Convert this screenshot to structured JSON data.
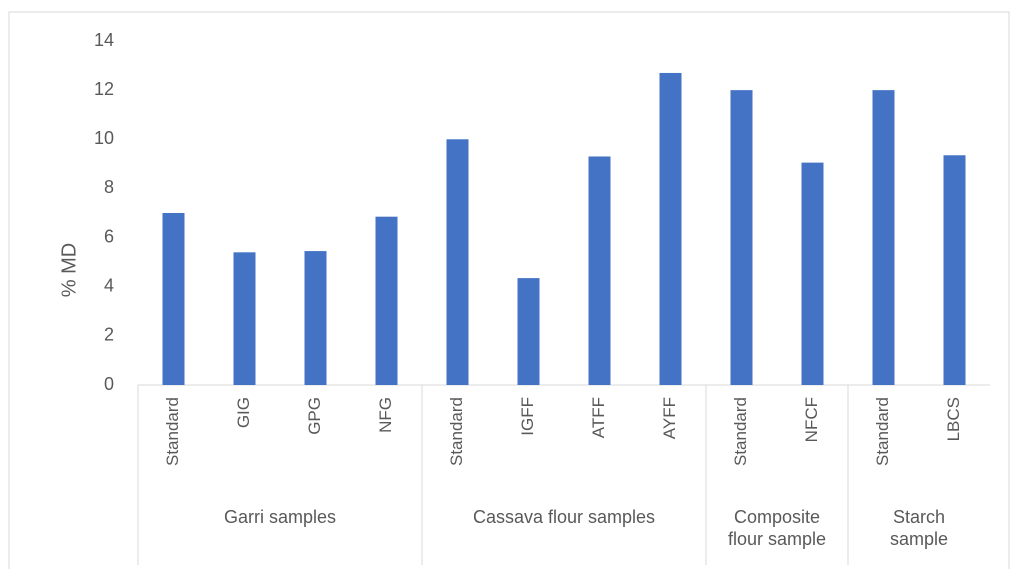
{
  "chart_data": {
    "type": "bar",
    "y_label": "% MD",
    "color": "#4472c4",
    "groups": [
      {
        "name": "Garri samples",
        "categories": [
          "Standard",
          "GIG",
          "GPG",
          "NFG"
        ],
        "values": [
          7.0,
          5.4,
          5.45,
          6.85
        ]
      },
      {
        "name": "Cassava flour samples",
        "categories": [
          "Standard",
          "IGFF",
          "ATFF",
          "AYFF"
        ],
        "values": [
          10.0,
          4.35,
          9.3,
          12.7
        ]
      },
      {
        "name": "Composite flour sample",
        "categories": [
          "Standard",
          "NFCF"
        ],
        "values": [
          12.0,
          9.05
        ]
      },
      {
        "name": "Starch sample",
        "categories": [
          "Standard",
          "LBCS"
        ],
        "values": [
          12.0,
          9.35
        ]
      }
    ],
    "ylim": [
      0,
      14
    ],
    "yticks": [
      0,
      2,
      4,
      6,
      8,
      10,
      12,
      14
    ],
    "grid": false
  }
}
